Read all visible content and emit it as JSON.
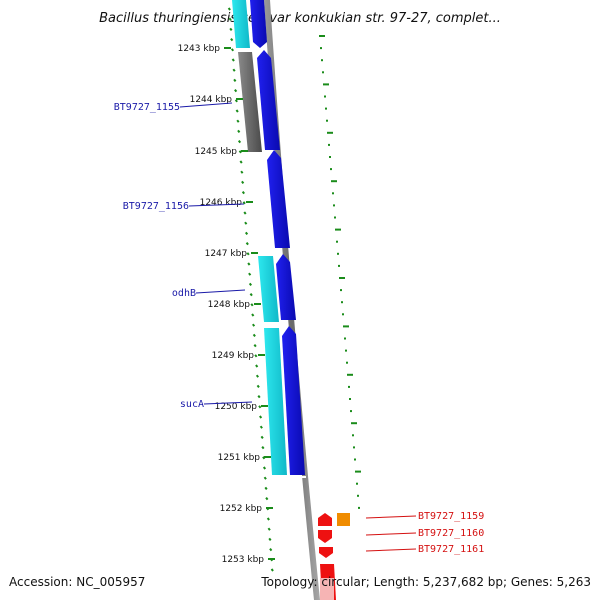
{
  "title": "Bacillus thuringiensis serovar konkukian str. 97-27, complet...",
  "accession": "Accession: NC_005957",
  "topology": "Topology: circular; Length: 5,237,682 bp; Genes: 5,263",
  "ticks": [
    "1243 kbp",
    "1244 kbp",
    "1245 kbp",
    "1246 kbp",
    "1247 kbp",
    "1248 kbp",
    "1249 kbp",
    "1250 kbp",
    "1251 kbp",
    "1252 kbp",
    "1253 kbp"
  ],
  "gene_labels_left": [
    "BT9727_1155",
    "BT9727_1156",
    "odhB",
    "sucA"
  ],
  "gene_labels_right": [
    "BT9727_1159",
    "BT9727_1160",
    "BT9727_1161"
  ],
  "colors": {
    "cyan": "#1fe0e8",
    "blue": "#1414e0",
    "gray_band": "#6e6e6e",
    "red": "#ee1111",
    "orange": "#f08c00",
    "tick_green": "#1a8c1a"
  }
}
